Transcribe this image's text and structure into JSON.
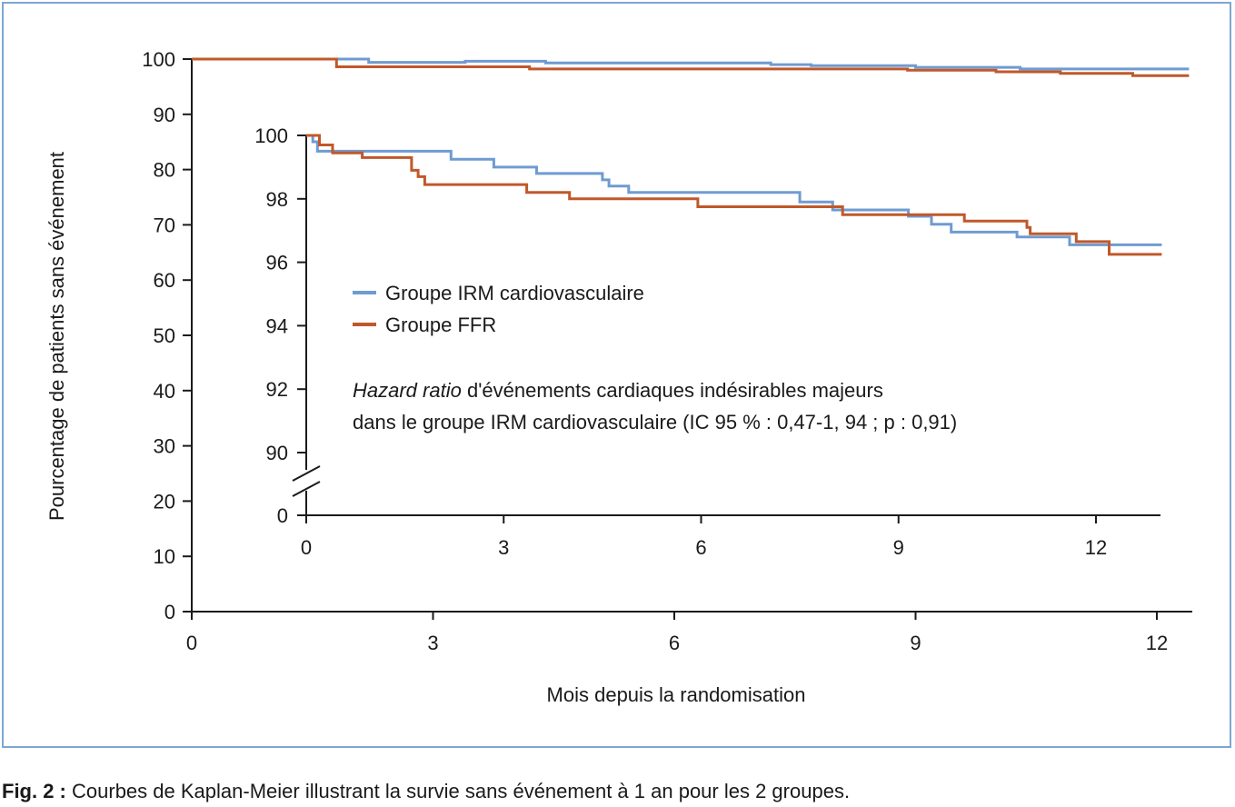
{
  "caption": {
    "label": "Fig. 2 :",
    "text": "Courbes de Kaplan-Meier illustrant la survie sans événement à 1 an pour les 2 groupes."
  },
  "colors": {
    "irm": "#6f9bd1",
    "ffr": "#c0582a",
    "frame": "#7ea6d2",
    "axis": "#1a1a1a"
  },
  "chart_data": [
    {
      "type": "line",
      "step": true,
      "xlabel": "Mois depuis la randomisation",
      "ylabel": "Pourcentage de patients sans événement",
      "xlim": [
        0,
        12.4
      ],
      "ylim": [
        0,
        100
      ],
      "xticks": [
        0,
        3,
        6,
        9,
        12
      ],
      "yticks": [
        0,
        10,
        20,
        30,
        40,
        50,
        60,
        70,
        80,
        90,
        100
      ],
      "series": [
        {
          "key": "irm",
          "points": [
            [
              0,
              100
            ],
            [
              2.2,
              100
            ],
            [
              2.2,
              99.4
            ],
            [
              3.4,
              99.4
            ],
            [
              3.4,
              99.6
            ],
            [
              4.4,
              99.6
            ],
            [
              4.4,
              99.3
            ],
            [
              7.2,
              99.3
            ],
            [
              7.2,
              99.0
            ],
            [
              7.7,
              99.0
            ],
            [
              7.7,
              98.8
            ],
            [
              9.0,
              98.8
            ],
            [
              9.0,
              98.5
            ],
            [
              10.3,
              98.5
            ],
            [
              10.3,
              98.2
            ],
            [
              12.4,
              98.2
            ]
          ]
        },
        {
          "key": "ffr",
          "points": [
            [
              0,
              100
            ],
            [
              1.8,
              100
            ],
            [
              1.8,
              98.6
            ],
            [
              4.2,
              98.6
            ],
            [
              4.2,
              98.2
            ],
            [
              8.9,
              98.2
            ],
            [
              8.9,
              98.0
            ],
            [
              10.0,
              98.0
            ],
            [
              10.0,
              97.7
            ],
            [
              10.8,
              97.7
            ],
            [
              10.8,
              97.4
            ],
            [
              11.7,
              97.4
            ],
            [
              11.7,
              97.0
            ],
            [
              12.4,
              97.0
            ]
          ]
        }
      ]
    },
    {
      "type": "line",
      "step": true,
      "inset": true,
      "xlim": [
        0,
        13
      ],
      "ylim": [
        89,
        100
      ],
      "axis_break": true,
      "xticks": [
        0,
        3,
        6,
        9,
        12
      ],
      "yticks": [
        0,
        90,
        92,
        94,
        96,
        98,
        100
      ],
      "legend": {
        "position": "center",
        "entries": [
          {
            "key": "irm",
            "label": "Groupe IRM cardiovasculaire"
          },
          {
            "key": "ffr",
            "label": "Groupe FFR"
          }
        ]
      },
      "annotation": {
        "italic": "Hazard ratio",
        "line1_rest": " d'événements cardiaques indésirables majeurs",
        "line2": "dans le groupe IRM cardiovasculaire (IC 95 % : 0,47-1, 94 ; p : 0,91)"
      },
      "series": [
        {
          "key": "irm",
          "points": [
            [
              0,
              100
            ],
            [
              0.1,
              100
            ],
            [
              0.1,
              99.8
            ],
            [
              0.17,
              99.8
            ],
            [
              0.17,
              99.5
            ],
            [
              2.2,
              99.5
            ],
            [
              2.2,
              99.25
            ],
            [
              2.85,
              99.25
            ],
            [
              2.85,
              99.0
            ],
            [
              3.5,
              99.0
            ],
            [
              3.5,
              98.8
            ],
            [
              4.5,
              98.8
            ],
            [
              4.5,
              98.6
            ],
            [
              4.6,
              98.6
            ],
            [
              4.6,
              98.4
            ],
            [
              4.9,
              98.4
            ],
            [
              4.9,
              98.2
            ],
            [
              7.5,
              98.2
            ],
            [
              7.5,
              97.9
            ],
            [
              8.0,
              97.9
            ],
            [
              8.0,
              97.65
            ],
            [
              9.15,
              97.65
            ],
            [
              9.15,
              97.45
            ],
            [
              9.5,
              97.45
            ],
            [
              9.5,
              97.2
            ],
            [
              9.8,
              97.2
            ],
            [
              9.8,
              96.95
            ],
            [
              10.8,
              96.95
            ],
            [
              10.8,
              96.8
            ],
            [
              11.6,
              96.8
            ],
            [
              11.6,
              96.55
            ],
            [
              13,
              96.55
            ]
          ]
        },
        {
          "key": "ffr",
          "points": [
            [
              0,
              100
            ],
            [
              0.2,
              100
            ],
            [
              0.2,
              99.7
            ],
            [
              0.4,
              99.7
            ],
            [
              0.4,
              99.45
            ],
            [
              0.85,
              99.45
            ],
            [
              0.85,
              99.3
            ],
            [
              1.6,
              99.3
            ],
            [
              1.6,
              98.9
            ],
            [
              1.7,
              98.9
            ],
            [
              1.7,
              98.7
            ],
            [
              1.8,
              98.7
            ],
            [
              1.8,
              98.45
            ],
            [
              3.35,
              98.45
            ],
            [
              3.35,
              98.2
            ],
            [
              4.0,
              98.2
            ],
            [
              4.0,
              98.0
            ],
            [
              5.95,
              98.0
            ],
            [
              5.95,
              97.75
            ],
            [
              8.15,
              97.75
            ],
            [
              8.15,
              97.5
            ],
            [
              10.0,
              97.5
            ],
            [
              10.0,
              97.3
            ],
            [
              10.95,
              97.3
            ],
            [
              10.95,
              97.1
            ],
            [
              11.0,
              97.1
            ],
            [
              11.0,
              96.9
            ],
            [
              11.7,
              96.9
            ],
            [
              11.7,
              96.65
            ],
            [
              12.2,
              96.65
            ],
            [
              12.2,
              96.25
            ],
            [
              13,
              96.25
            ]
          ]
        }
      ]
    }
  ]
}
